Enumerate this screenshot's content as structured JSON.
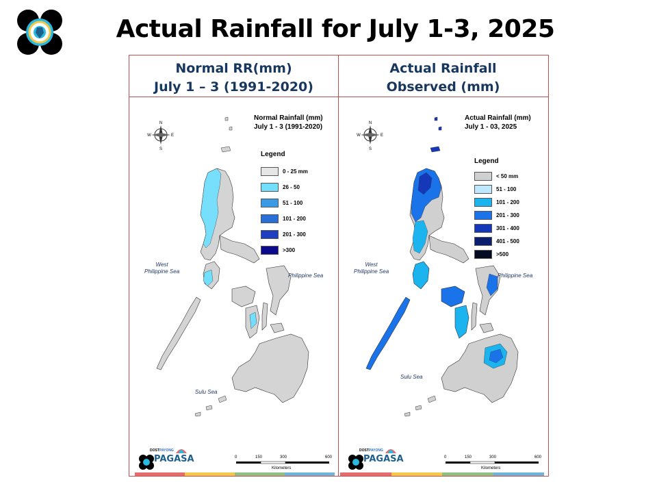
{
  "title": "Actual Rainfall for July 1-3, 2025",
  "headers": {
    "left": [
      "Normal RR(mm)",
      "July 1 – 3 (1991-2020)"
    ],
    "right": [
      "Actual Rainfall",
      "Observed  (mm)"
    ]
  },
  "left_map": {
    "title": [
      "Normal Rainfall (mm)",
      "July 1 - 3 (1991-2020)"
    ],
    "legend_title": "Legend",
    "legend": [
      {
        "label": "0 - 25 mm",
        "color": "#e6e6e6"
      },
      {
        "label": "26 - 50",
        "color": "#73dfff"
      },
      {
        "label": "51 - 100",
        "color": "#3a9ae6"
      },
      {
        "label": "101 - 200",
        "color": "#2a6fd6"
      },
      {
        "label": "201 - 300",
        "color": "#1f3fbf"
      },
      {
        "label": ">300",
        "color": "#0a0a8a"
      }
    ],
    "seas": {
      "west": [
        "West",
        "Philippine Sea"
      ],
      "east": "Philippine Sea",
      "sulu": "Sulu Sea"
    },
    "scale": {
      "ticks": [
        "0",
        "150",
        "300",
        "600"
      ],
      "units": "Kilometers"
    }
  },
  "right_map": {
    "title": [
      "Actual Rainfall (mm)",
      "July 1 - 03, 2025"
    ],
    "legend_title": "Legend",
    "legend": [
      {
        "label": "< 50 mm",
        "color": "#d0d0d0"
      },
      {
        "label": "51 - 100",
        "color": "#bee8ff"
      },
      {
        "label": "101 - 200",
        "color": "#1bb4ee"
      },
      {
        "label": "201 - 300",
        "color": "#1a73e8"
      },
      {
        "label": "301 - 400",
        "color": "#1438b8"
      },
      {
        "label": "401 - 500",
        "color": "#0b1f6e"
      },
      {
        "label": ">500",
        "color": "#040a22"
      }
    ],
    "seas": {
      "west": [
        "West",
        "Philippine Sea"
      ],
      "east": "Philippine Sea",
      "sulu": "Sulu Sea"
    },
    "scale": {
      "ticks": [
        "0",
        "150",
        "300",
        "600"
      ],
      "units": "Kilometers"
    }
  },
  "compass_letters": [
    "N",
    "E",
    "S",
    "W"
  ],
  "brand": {
    "name": "PAGASA",
    "top": "DOST",
    "sub": "PAYONG"
  },
  "colors": {
    "frame": "#c0504d",
    "header_text": "#17375e",
    "land_gray": "#d4d4d4",
    "strip": [
      "#e36c6c",
      "#f2c94c",
      "#8cc084",
      "#6fb3d9"
    ]
  }
}
